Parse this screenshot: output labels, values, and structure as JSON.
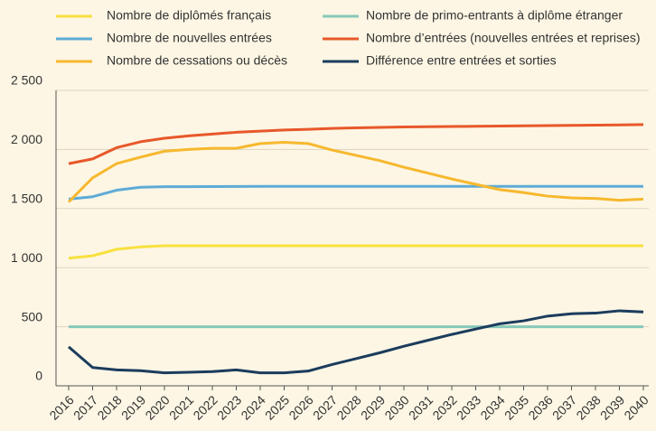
{
  "chart_data": {
    "type": "line",
    "categories": [
      "2016",
      "2017",
      "2018",
      "2019",
      "2020",
      "2021",
      "2022",
      "2023",
      "2024",
      "2025",
      "2026",
      "2027",
      "2028",
      "2029",
      "2030",
      "2031",
      "2032",
      "2033",
      "2034",
      "2035",
      "2036",
      "2037",
      "2038",
      "2039",
      "2040"
    ],
    "series": [
      {
        "name": "Nombre de diplômés français",
        "color": "#f8e03f",
        "values": [
          1080,
          1100,
          1155,
          1175,
          1185,
          1185,
          1185,
          1185,
          1185,
          1185,
          1185,
          1185,
          1185,
          1185,
          1185,
          1185,
          1185,
          1185,
          1185,
          1185,
          1185,
          1185,
          1185,
          1185,
          1185
        ]
      },
      {
        "name": "Nombre de primo-entrants à diplôme étranger",
        "color": "#86c9b9",
        "values": [
          500,
          500,
          500,
          500,
          500,
          500,
          500,
          500,
          500,
          500,
          500,
          500,
          500,
          500,
          500,
          500,
          500,
          500,
          500,
          500,
          500,
          500,
          500,
          500,
          500
        ]
      },
      {
        "name": "Nombre de nouvelles entrées",
        "color": "#5eabd6",
        "values": [
          1580,
          1600,
          1655,
          1680,
          1685,
          1685,
          1686,
          1687,
          1688,
          1688,
          1688,
          1688,
          1688,
          1688,
          1688,
          1688,
          1688,
          1688,
          1688,
          1688,
          1688,
          1688,
          1688,
          1688,
          1688
        ]
      },
      {
        "name": "Nombre d’entrées (nouvelles entrées et reprises)",
        "color": "#e8582a",
        "values": [
          1880,
          1920,
          2015,
          2065,
          2095,
          2115,
          2130,
          2145,
          2155,
          2165,
          2170,
          2178,
          2183,
          2187,
          2190,
          2192,
          2194,
          2196,
          2198,
          2200,
          2202,
          2204,
          2206,
          2208,
          2210
        ]
      },
      {
        "name": "Nombre de cessations ou décès",
        "color": "#f6b82e",
        "values": [
          1555,
          1760,
          1880,
          1935,
          1985,
          2000,
          2010,
          2010,
          2050,
          2060,
          2050,
          1995,
          1950,
          1905,
          1850,
          1800,
          1750,
          1705,
          1660,
          1635,
          1605,
          1590,
          1585,
          1570,
          1580
        ]
      },
      {
        "name": "Différence entre entrées et sorties",
        "color": "#1b3c5d",
        "values": [
          330,
          155,
          135,
          128,
          110,
          115,
          120,
          135,
          110,
          110,
          125,
          180,
          230,
          280,
          335,
          385,
          435,
          480,
          525,
          550,
          590,
          610,
          615,
          635,
          625
        ]
      }
    ],
    "ylim": [
      0,
      2500
    ],
    "yticks": [
      0,
      500,
      {
        "value": 1000,
        "label": "1 000"
      },
      {
        "value": 1500,
        "label": "1 500"
      },
      {
        "value": 2000,
        "label": "2 000"
      },
      {
        "value": 2500,
        "label": "2 500"
      }
    ],
    "grid": true
  }
}
